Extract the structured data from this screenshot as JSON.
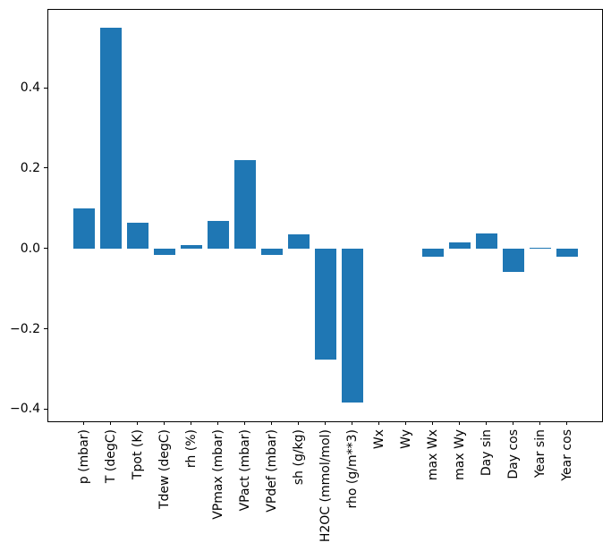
{
  "figure": {
    "background": "#ffffff",
    "bar_color": "#1f77b4",
    "axis_color": "#000000",
    "tick_label_color": "#000000"
  },
  "chart_data": {
    "type": "bar",
    "title": "",
    "xlabel": "",
    "ylabel": "",
    "categories": [
      "p (mbar)",
      "T (degC)",
      "Tpot (K)",
      "Tdew (degC)",
      "rh (%)",
      "VPmax (mbar)",
      "VPact (mbar)",
      "VPdef (mbar)",
      "sh (g/kg)",
      "H2OC (mmol/mol)",
      "rho (g/m**3)",
      "Wx",
      "Wy",
      "max Wx",
      "max Wy",
      "Day sin",
      "Day cos",
      "Year sin",
      "Year cos"
    ],
    "values": [
      0.1,
      0.549,
      0.064,
      -0.015,
      0.01,
      0.069,
      0.221,
      -0.016,
      0.035,
      -0.276,
      -0.382,
      0.0,
      0.0,
      -0.02,
      0.016,
      0.038,
      -0.059,
      0.003,
      -0.019
    ],
    "yticks": [
      0.4,
      0.2,
      0.0,
      -0.2,
      -0.4
    ],
    "ytick_labels": [
      "0.4",
      "0.2",
      "0.0",
      "−0.2",
      "−0.4"
    ],
    "ylim": [
      -0.429,
      0.596
    ],
    "grid": false,
    "legend": null,
    "x_tick_rotation_deg": 90
  }
}
